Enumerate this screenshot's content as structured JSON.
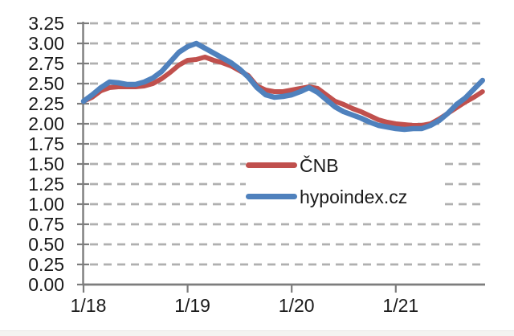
{
  "chart_data": {
    "type": "line",
    "title": "",
    "xlabel": "",
    "ylabel": "",
    "ylim": [
      0,
      3.25
    ],
    "y_tick_step": 0.25,
    "y_ticks": [
      "3.25",
      "3.00",
      "2.75",
      "2.50",
      "2.25",
      "2.00",
      "1.75",
      "1.50",
      "1.25",
      "1.00",
      "0.75",
      "0.50",
      "0.25",
      "0.00"
    ],
    "x_ticks": [
      "1/18",
      "1/19",
      "1/20",
      "1/21"
    ],
    "x_tick_months": [
      0,
      12,
      24,
      36
    ],
    "x_range_months": "1/18 to 11/21, monthly",
    "grid": "dashed horizontal gridlines",
    "legend_position": "center-right, white background",
    "colors": {
      "cnb_red": "#C0504D",
      "hypoindex_blue": "#4F81BD",
      "gridline": "#B0B0B0",
      "axis": "#7D7D7D",
      "text": "#1A1A1A"
    },
    "series": [
      {
        "name": "ČNB",
        "color": "#C0504D",
        "values": [
          2.28,
          2.33,
          2.41,
          2.45,
          2.46,
          2.46,
          2.46,
          2.47,
          2.5,
          2.56,
          2.64,
          2.73,
          2.79,
          2.8,
          2.83,
          2.79,
          2.76,
          2.72,
          2.66,
          2.6,
          2.47,
          2.42,
          2.4,
          2.4,
          2.42,
          2.44,
          2.46,
          2.44,
          2.36,
          2.28,
          2.24,
          2.19,
          2.15,
          2.1,
          2.05,
          2.02,
          2.0,
          1.99,
          1.98,
          1.98,
          2.0,
          2.06,
          2.13,
          2.2,
          2.27,
          2.33,
          2.4
        ]
      },
      {
        "name": "hypoindex.cz",
        "color": "#4F81BD",
        "values": [
          2.28,
          2.36,
          2.45,
          2.52,
          2.51,
          2.49,
          2.49,
          2.52,
          2.57,
          2.65,
          2.77,
          2.89,
          2.96,
          3.0,
          2.94,
          2.88,
          2.82,
          2.76,
          2.68,
          2.58,
          2.45,
          2.36,
          2.33,
          2.34,
          2.36,
          2.4,
          2.45,
          2.39,
          2.3,
          2.21,
          2.15,
          2.11,
          2.07,
          2.02,
          1.98,
          1.96,
          1.94,
          1.93,
          1.94,
          1.94,
          1.98,
          2.04,
          2.13,
          2.24,
          2.32,
          2.43,
          2.54
        ]
      }
    ]
  }
}
